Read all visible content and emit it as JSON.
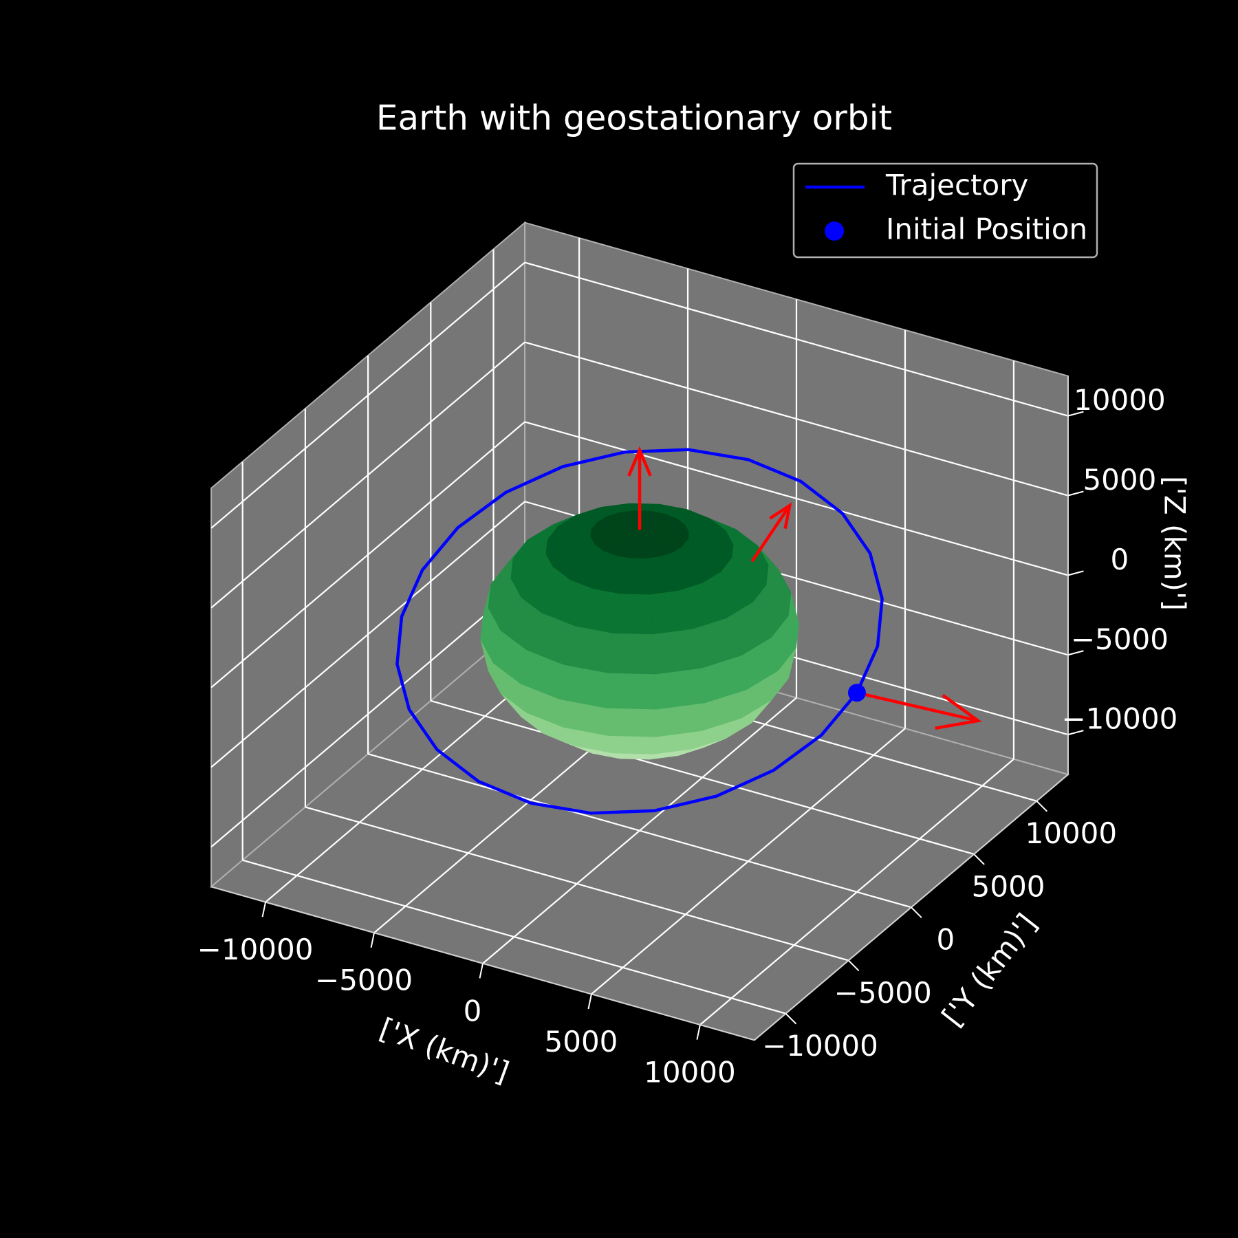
{
  "chart_data": {
    "type": "line3d",
    "title": "Earth with geostationary orbit",
    "xlabel": "['X (km)']",
    "ylabel": "['Y (km)']",
    "zlabel": "['Z (km)']",
    "xlim": [
      -12500,
      12500
    ],
    "ylim": [
      -12500,
      12500
    ],
    "zlim": [
      -12500,
      12500
    ],
    "xticks": [
      {
        "value": -10000,
        "label": "−10000"
      },
      {
        "value": -5000,
        "label": "−5000"
      },
      0,
      5000,
      10000
    ],
    "yticks": [
      {
        "value": -10000,
        "label": "−10000"
      },
      {
        "value": -5000,
        "label": "−5000"
      },
      0,
      5000,
      10000
    ],
    "zticks": [
      {
        "value": -10000,
        "label": "−10000"
      },
      {
        "value": -5000,
        "label": "−5000"
      },
      0,
      5000,
      10000
    ],
    "grid": true,
    "legend": "upper right",
    "series": [
      {
        "name": "Trajectory",
        "color": "#0000ff",
        "style": "line",
        "x": [
          10000,
          9659,
          8660,
          7071,
          5000,
          2588,
          0,
          -2588,
          -5000,
          -7071,
          -8660,
          -9659,
          -10000,
          -9659,
          -8660,
          -7071,
          -5000,
          -2588,
          0,
          2588,
          5000,
          7071,
          8660,
          9659,
          10000
        ],
        "y": [
          0,
          2241,
          4330,
          6124,
          7500,
          8365,
          8660,
          8365,
          7500,
          6124,
          4330,
          2241,
          0,
          -2241,
          -4330,
          -6124,
          -7500,
          -8365,
          -8660,
          -8365,
          -7500,
          -6124,
          -4330,
          -2241,
          0
        ],
        "z": [
          0,
          1294,
          2500,
          3536,
          4330,
          4830,
          5000,
          4830,
          4330,
          3536,
          2500,
          1294,
          0,
          -1294,
          -2500,
          -3536,
          -4330,
          -4830,
          -5000,
          -4830,
          -4330,
          -3536,
          -2500,
          -1294,
          0
        ]
      },
      {
        "name": "Initial Position",
        "color": "#0000ff",
        "style": "marker",
        "x": [
          10000
        ],
        "y": [
          0
        ],
        "z": [
          0
        ]
      }
    ],
    "arrows": {
      "color": "#ff0000",
      "x": [
        0,
        2000,
        10000
      ],
      "y": [
        0,
        5500,
        0
      ],
      "z": [
        6371,
        1500,
        0
      ],
      "u": [
        0,
        0,
        5000
      ],
      "v": [
        0,
        3000,
        1000
      ],
      "w": [
        5000,
        1500,
        -500
      ]
    },
    "sphere": {
      "radius": 6371,
      "colors": [
        "#e5f5e0",
        "#d0edca",
        "#b2e0ab",
        "#8ed18c",
        "#66bd6f",
        "#3da75a",
        "#238c45",
        "#0b7533",
        "#005a25",
        "#00441b"
      ]
    }
  }
}
